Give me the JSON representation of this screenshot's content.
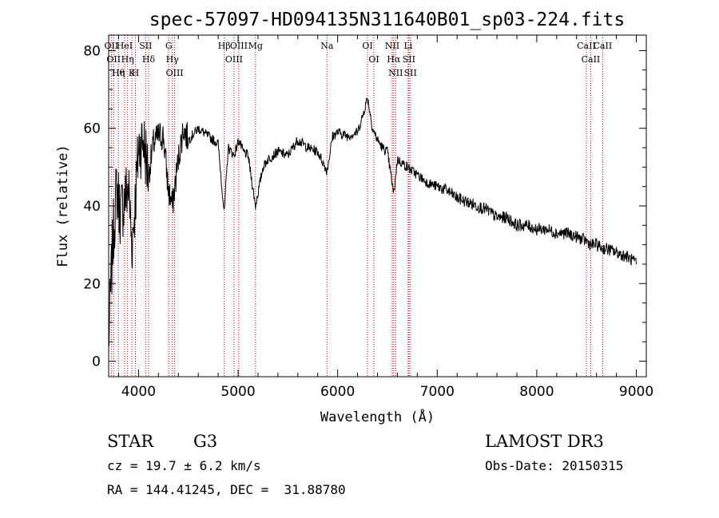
{
  "chart_data": {
    "type": "line",
    "title": "spec-57097-HD094135N311640B01_sp03-224.fits",
    "xlabel": "Wavelength (Å)",
    "ylabel": "Flux (relative)",
    "xlim": [
      3700,
      9100
    ],
    "ylim": [
      -4,
      84
    ],
    "xticks": [
      4000,
      5000,
      6000,
      7000,
      8000,
      9000
    ],
    "yticks": [
      0,
      20,
      40,
      60,
      80
    ],
    "series": [
      {
        "name": "flux",
        "x": [
          3700,
          3740,
          3780,
          3820,
          3860,
          3900,
          3933,
          3970,
          4000,
          4050,
          4101,
          4150,
          4200,
          4250,
          4300,
          4340,
          4400,
          4450,
          4500,
          4600,
          4700,
          4800,
          4861,
          4900,
          4960,
          5007,
          5050,
          5100,
          5175,
          5250,
          5300,
          5400,
          5500,
          5600,
          5700,
          5800,
          5893,
          5950,
          6000,
          6100,
          6200,
          6250,
          6300,
          6350,
          6400,
          6450,
          6500,
          6563,
          6600,
          6650,
          6700,
          6800,
          6900,
          7000,
          7100,
          7200,
          7300,
          7400,
          7500,
          7600,
          7700,
          7800,
          7900,
          8000,
          8100,
          8200,
          8300,
          8400,
          8498,
          8542,
          8600,
          8662,
          8700,
          8800,
          8900,
          8960,
          9000
        ],
        "y": [
          5,
          30,
          45,
          38,
          42,
          45,
          30,
          42,
          55,
          57,
          48,
          56,
          58,
          58,
          44,
          40,
          52,
          60,
          57,
          60,
          58,
          56,
          38,
          55,
          53,
          57,
          54,
          53,
          40,
          50,
          52,
          54,
          53,
          57,
          55,
          54,
          49,
          58,
          59,
          58,
          59,
          63,
          68,
          60,
          57,
          55,
          54,
          43,
          52,
          51,
          50,
          48,
          46,
          45,
          44,
          42,
          41,
          40,
          39,
          37,
          37,
          35,
          35,
          34,
          34,
          33,
          33,
          32,
          31,
          30,
          30,
          29,
          29,
          28,
          27,
          26,
          25
        ]
      }
    ],
    "lines": [
      {
        "wl": 3727,
        "labels": [
          "OII"
        ]
      },
      {
        "wl": 3750,
        "labels": [
          "OII"
        ]
      },
      {
        "wl": 3798,
        "labels": [
          "Hθ",
          "Hη"
        ]
      },
      {
        "wl": 3860,
        "labels": [
          "HeI"
        ]
      },
      {
        "wl": 3890,
        "labels": [
          "Hη"
        ]
      },
      {
        "wl": 3933,
        "labels": [
          "K"
        ]
      },
      {
        "wl": 3968,
        "labels": [
          "H"
        ]
      },
      {
        "wl": 4072,
        "labels": [
          "SII"
        ]
      },
      {
        "wl": 4101,
        "labels": [
          "Hδ"
        ]
      },
      {
        "wl": 4304,
        "labels": [
          "G"
        ]
      },
      {
        "wl": 4340,
        "labels": [
          "Hγ"
        ]
      },
      {
        "wl": 4363,
        "labels": [
          "OIII"
        ]
      },
      {
        "wl": 4861,
        "labels": [
          "Hβ"
        ]
      },
      {
        "wl": 4959,
        "labels": [
          "OIII"
        ]
      },
      {
        "wl": 5007,
        "labels": [
          "OIII"
        ]
      },
      {
        "wl": 5175,
        "labels": [
          "Mg"
        ]
      },
      {
        "wl": 5893,
        "labels": [
          "Na"
        ]
      },
      {
        "wl": 6300,
        "labels": [
          "OI"
        ]
      },
      {
        "wl": 6364,
        "labels": [
          "OI"
        ]
      },
      {
        "wl": 6548,
        "labels": [
          "NII"
        ]
      },
      {
        "wl": 6563,
        "labels": [
          "Hα"
        ]
      },
      {
        "wl": 6583,
        "labels": [
          "NII"
        ]
      },
      {
        "wl": 6708,
        "labels": [
          "Li"
        ]
      },
      {
        "wl": 6716,
        "labels": [
          "SII"
        ]
      },
      {
        "wl": 6731,
        "labels": [
          "SII"
        ]
      },
      {
        "wl": 8498,
        "labels": [
          "CaII"
        ]
      },
      {
        "wl": 8542,
        "labels": [
          "CaII"
        ]
      },
      {
        "wl": 8662,
        "labels": [
          "CaII"
        ]
      }
    ]
  },
  "colors": {
    "spectrum": "#000000",
    "axes": "#000000",
    "lines": "#cc0000"
  },
  "info": {
    "object_class": "STAR",
    "subclass": "G3",
    "survey": "LAMOST DR3",
    "redshift": "cz = 19.7 ± 6.2 km/s",
    "obs_date": "Obs-Date: 20150315",
    "coords": "RA = 144.41245, DEC =  31.88780"
  }
}
